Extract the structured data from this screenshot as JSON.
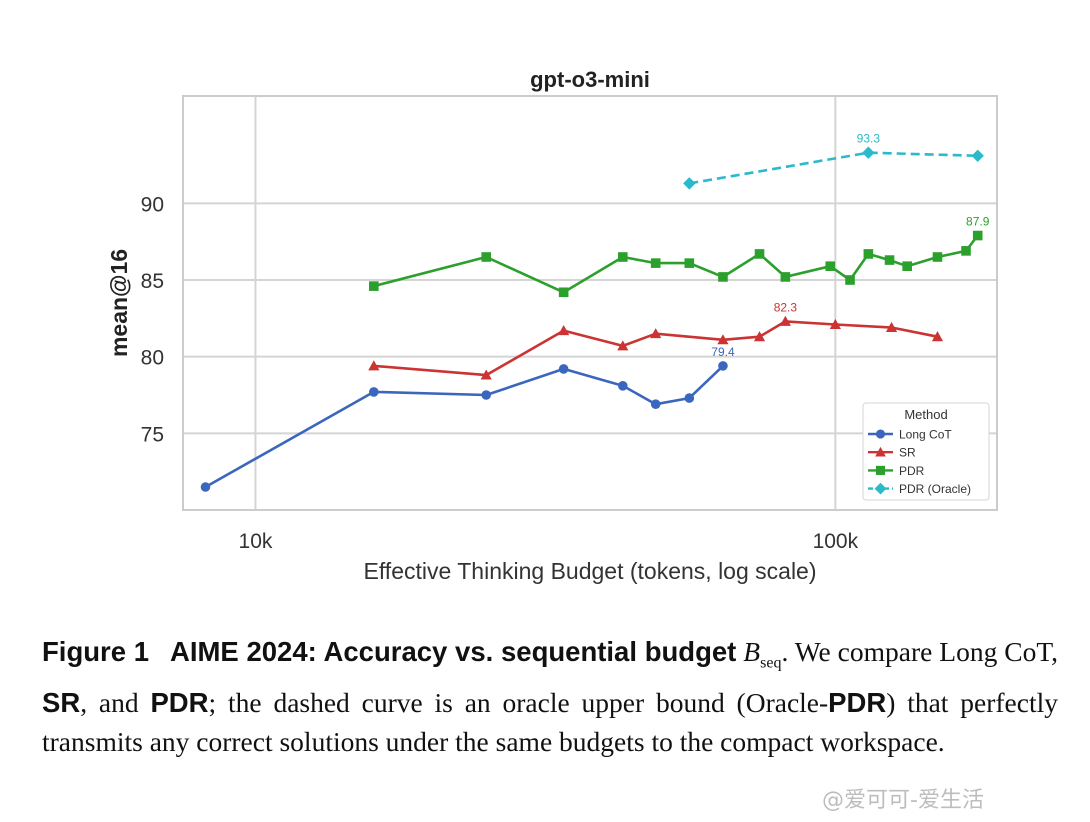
{
  "chart_data": {
    "type": "line",
    "title": "gpt-o3-mini",
    "xlabel": "Effective Thinking Budget (tokens, log scale)",
    "ylabel": "mean@16",
    "xscale": "log",
    "xlim": [
      7500,
      190000
    ],
    "ylim": [
      70,
      97
    ],
    "xticks": [
      {
        "value": 10000,
        "label": "10k"
      },
      {
        "value": 100000,
        "label": "100k"
      }
    ],
    "yticks": [
      75,
      80,
      85,
      90
    ],
    "grid": true,
    "legend": {
      "title": "Method",
      "position": "lower-right"
    },
    "series": [
      {
        "name": "Long CoT",
        "color": "#3a66be",
        "marker": "circle",
        "dashed": false,
        "x": [
          8200,
          16000,
          25000,
          34000,
          43000,
          49000,
          56000,
          64000
        ],
        "y": [
          71.5,
          77.7,
          77.5,
          79.2,
          78.1,
          76.9,
          77.3,
          79.4
        ],
        "annotations": [
          {
            "index": 7,
            "label": "79.4"
          }
        ]
      },
      {
        "name": "SR",
        "color": "#cc3333",
        "marker": "triangle",
        "dashed": false,
        "x": [
          16000,
          25000,
          34000,
          43000,
          49000,
          64000,
          74000,
          82000,
          100000,
          125000,
          150000
        ],
        "y": [
          79.4,
          78.8,
          81.7,
          80.7,
          81.5,
          81.1,
          81.3,
          82.3,
          82.1,
          81.9,
          81.3
        ],
        "annotations": [
          {
            "index": 7,
            "label": "82.3"
          }
        ]
      },
      {
        "name": "PDR",
        "color": "#2ca02c",
        "marker": "square",
        "dashed": false,
        "x": [
          16000,
          25000,
          34000,
          43000,
          49000,
          56000,
          64000,
          74000,
          82000,
          98000,
          106000,
          114000,
          124000,
          133000,
          150000,
          168000,
          176000
        ],
        "y": [
          84.6,
          86.5,
          84.2,
          86.5,
          86.1,
          86.1,
          85.2,
          86.7,
          85.2,
          85.9,
          85.0,
          86.7,
          86.3,
          85.9,
          86.5,
          86.9,
          87.9
        ],
        "annotations": [
          {
            "index": 16,
            "label": "87.9"
          }
        ]
      },
      {
        "name": "PDR (Oracle)",
        "color": "#2bbacb",
        "marker": "diamond",
        "dashed": true,
        "x": [
          56000,
          114000,
          176000
        ],
        "y": [
          91.3,
          93.3,
          93.1
        ],
        "annotations": [
          {
            "index": 1,
            "label": "93.3"
          }
        ]
      }
    ]
  },
  "caption": {
    "figure_label": "Figure 1",
    "heading": "AIME 2024: Accuracy vs. sequential budget",
    "budget_symbol": "B",
    "budget_subscript": "seq",
    "text_1": ". We compare Long CoT,",
    "sr": "SR",
    "text_2": ", and",
    "pdr_1": "PDR",
    "text_3": "; the dashed curve is an oracle upper bound (Oracle-",
    "pdr_2": "PDR",
    "text_4": ") that perfectly transmits any correct solutions under the same budgets to the compact workspace."
  },
  "watermark": "@爱可可-爱生活"
}
